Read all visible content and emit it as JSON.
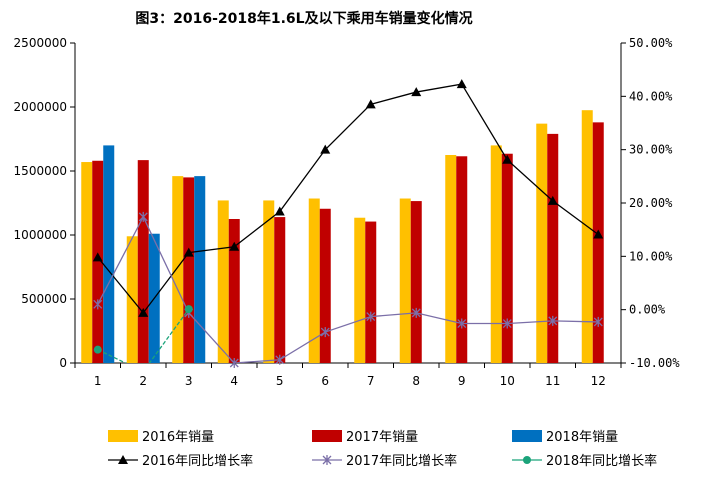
{
  "chart_data": {
    "type": "bar",
    "title": "图3：2016-2018年1.6L及以下乘用车销量变化情况",
    "categories": [
      "1",
      "2",
      "3",
      "4",
      "5",
      "6",
      "7",
      "8",
      "9",
      "10",
      "11",
      "12"
    ],
    "y_left": {
      "min": 0,
      "max": 2500000,
      "ticks": [
        "0",
        "500000",
        "1000000",
        "1500000",
        "2000000",
        "2500000"
      ]
    },
    "y_right": {
      "min": -10,
      "max": 50,
      "ticks": [
        "-10.00%",
        "0.00%",
        "10.00%",
        "20.00%",
        "30.00%",
        "40.00%",
        "50.00%"
      ]
    },
    "bar_series": [
      {
        "name": "2016年销量",
        "color": "#FFC000",
        "values": [
          1570000,
          990000,
          1460000,
          1270000,
          1270000,
          1285000,
          1135000,
          1285000,
          1625000,
          1700000,
          1870000,
          1975000
        ]
      },
      {
        "name": "2017年销量",
        "color": "#C00000",
        "values": [
          1580000,
          1585000,
          1450000,
          1125000,
          1140000,
          1205000,
          1105000,
          1265000,
          1615000,
          1635000,
          1790000,
          1880000
        ]
      },
      {
        "name": "2018年销量",
        "color": "#0070C0",
        "values": [
          1700000,
          1010000,
          1460000,
          null,
          null,
          null,
          null,
          null,
          null,
          null,
          null,
          null
        ]
      }
    ],
    "line_series": [
      {
        "name": "2016年同比增长率",
        "color": "#000000",
        "marker": "triangle",
        "values": [
          9.8,
          -0.6,
          10.7,
          11.8,
          18.4,
          30.0,
          38.5,
          40.8,
          42.3,
          28.1,
          20.4,
          14.1
        ]
      },
      {
        "name": "2017年同比增长率",
        "color": "#7B6FA8",
        "marker": "star",
        "values": [
          1.0,
          17.4,
          -0.6,
          -10.0,
          -9.4,
          -4.2,
          -1.3,
          -0.6,
          -2.6,
          -2.6,
          -2.1,
          -2.3
        ]
      },
      {
        "name": "2018年同比增长率",
        "color": "#1BA37A",
        "marker": "circle",
        "values": [
          -7.5,
          -11.6,
          0.1,
          null,
          null,
          null,
          null,
          null,
          null,
          null,
          null,
          null
        ]
      }
    ],
    "legend_position": "bottom"
  }
}
